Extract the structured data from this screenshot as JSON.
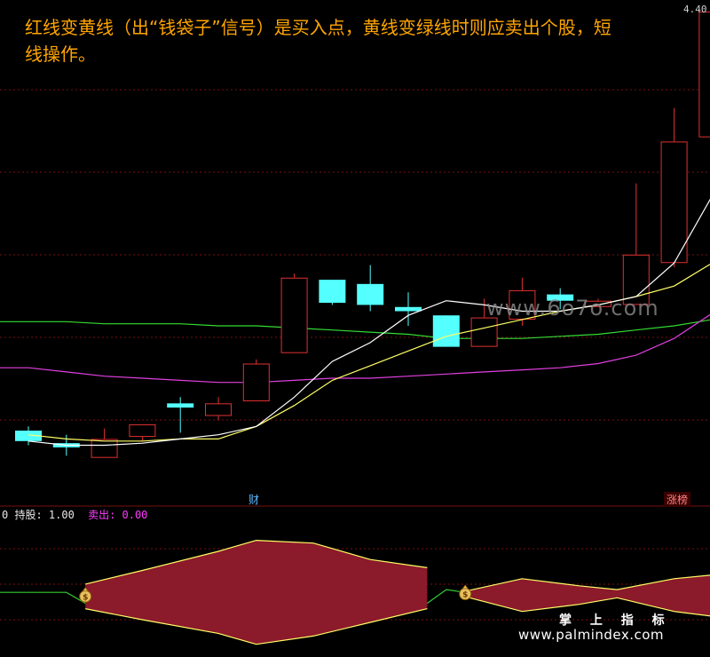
{
  "headline": "红线变黄线（出“钱袋子”信号）是买入点，黄线变绿线时则应卖出个股，短线操作。",
  "price_label": "4.40",
  "markers": {
    "cai": "财",
    "zhangbang": "涨榜"
  },
  "indicator": {
    "zero_label": "0",
    "hold_text": "持股: 1.00",
    "sell_text": "卖出: 0.00",
    "signal_icon": "money-bag-icon"
  },
  "watermarks": {
    "site1": "www.6o7o.com",
    "site2_label": "掌 上 指 标",
    "site2_url": "www.palmindex.com"
  },
  "colors": {
    "background": "#000000",
    "up_candle": "#e03030",
    "down_candle": "#54ffff",
    "ma_white": "#ffffff",
    "ma_yellow": "#ffff66",
    "ma_green": "#33dd33",
    "ma_magenta": "#e040e0",
    "grid": "#7a1010",
    "histogram_fill": "#8b1a2b",
    "histogram_edge": "#ffff66",
    "indicator_line": "#33cc33",
    "headline": "#ffa500"
  },
  "chart_data": [
    {
      "type": "candlestick",
      "candles": [
        {
          "o": 2.4,
          "c": 2.35,
          "h": 2.42,
          "l": 2.33
        },
        {
          "o": 2.34,
          "c": 2.32,
          "h": 2.38,
          "l": 2.28
        },
        {
          "o": 2.27,
          "c": 2.36,
          "h": 2.41,
          "l": 2.27
        },
        {
          "o": 2.37,
          "c": 2.43,
          "h": 2.43,
          "l": 2.35
        },
        {
          "o": 2.53,
          "c": 2.51,
          "h": 2.56,
          "l": 2.39
        },
        {
          "o": 2.47,
          "c": 2.53,
          "h": 2.56,
          "l": 2.45
        },
        {
          "o": 2.54,
          "c": 2.72,
          "h": 2.74,
          "l": 2.54
        },
        {
          "o": 2.77,
          "c": 3.13,
          "h": 3.15,
          "l": 2.77
        },
        {
          "o": 3.12,
          "c": 3.01,
          "h": 3.1,
          "l": 3.0
        },
        {
          "o": 3.1,
          "c": 3.0,
          "h": 3.19,
          "l": 2.97
        },
        {
          "o": 2.99,
          "c": 2.97,
          "h": 3.06,
          "l": 2.9
        },
        {
          "o": 2.95,
          "c": 2.8,
          "h": 2.95,
          "l": 2.8
        },
        {
          "o": 2.8,
          "c": 2.94,
          "h": 3.03,
          "l": 2.8
        },
        {
          "o": 2.93,
          "c": 3.07,
          "h": 3.13,
          "l": 2.9
        },
        {
          "o": 3.05,
          "c": 3.02,
          "h": 3.08,
          "l": 2.98
        },
        {
          "o": 2.99,
          "c": 3.02,
          "h": 3.03,
          "l": 2.99
        },
        {
          "o": 3.0,
          "c": 3.24,
          "h": 3.58,
          "l": 3.0
        },
        {
          "o": 3.2,
          "c": 3.78,
          "h": 3.94,
          "l": 3.18
        },
        {
          "o": 3.8,
          "c": 4.4,
          "h": 4.4,
          "l": 3.78
        }
      ],
      "ma_white": [
        2.35,
        2.33,
        2.33,
        2.34,
        2.36,
        2.38,
        2.42,
        2.56,
        2.73,
        2.82,
        2.95,
        3.02,
        3.0,
        2.97,
        2.97,
        3.0,
        3.04,
        3.2,
        3.52
      ],
      "ma_yellow": [
        2.38,
        2.36,
        2.35,
        2.35,
        2.36,
        2.36,
        2.42,
        2.52,
        2.64,
        2.71,
        2.78,
        2.85,
        2.89,
        2.93,
        2.97,
        3.0,
        3.04,
        3.09,
        3.2
      ],
      "ma_green": [
        2.92,
        2.92,
        2.91,
        2.91,
        2.91,
        2.9,
        2.9,
        2.89,
        2.88,
        2.87,
        2.86,
        2.84,
        2.84,
        2.84,
        2.85,
        2.86,
        2.88,
        2.9,
        2.93
      ],
      "ma_magenta": [
        2.7,
        2.68,
        2.66,
        2.65,
        2.64,
        2.63,
        2.63,
        2.64,
        2.65,
        2.65,
        2.66,
        2.67,
        2.68,
        2.69,
        2.7,
        2.72,
        2.76,
        2.84,
        2.96
      ],
      "ylim": [
        2.15,
        4.43
      ]
    },
    {
      "type": "area",
      "signal_line_x": [
        0,
        1,
        1.5,
        10.5,
        11,
        11.5
      ],
      "signal_line_y": [
        0.8,
        0.8,
        0.6,
        0.6,
        0.85,
        0.8
      ],
      "band_segments": [
        {
          "x": [
            1.5,
            3,
            5,
            6,
            7.5,
            9,
            10.5
          ],
          "top": [
            0.95,
            1.2,
            1.55,
            1.75,
            1.7,
            1.4,
            1.25
          ],
          "bottom": [
            0.5,
            0.3,
            0.05,
            -0.15,
            0.0,
            0.25,
            0.5
          ]
        },
        {
          "x": [
            11.5,
            13,
            14.5,
            15.5,
            17,
            18.5
          ],
          "top": [
            0.82,
            1.05,
            0.92,
            0.85,
            1.05,
            1.15
          ],
          "bottom": [
            0.72,
            0.45,
            0.58,
            0.7,
            0.45,
            0.32
          ]
        }
      ],
      "signals_x": [
        1.5,
        11.5
      ],
      "ylim": [
        -0.35,
        2.15
      ]
    }
  ]
}
